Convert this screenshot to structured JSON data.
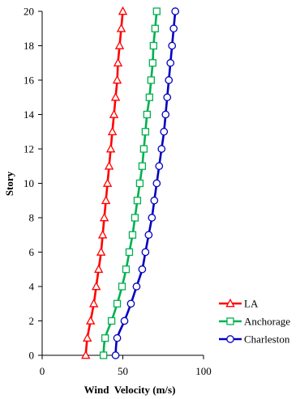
{
  "chart_data": {
    "type": "line",
    "title": "",
    "xlabel": "Wind  Velocity (m/s)",
    "ylabel": "Story",
    "xlim": [
      0,
      100
    ],
    "ylim": [
      0,
      20
    ],
    "x_ticks": [
      "0",
      "50",
      "100"
    ],
    "y_ticks": [
      "0",
      "2",
      "4",
      "6",
      "8",
      "10",
      "12",
      "14",
      "16",
      "18",
      "20"
    ],
    "grid": false,
    "legend_position": "bottom-right",
    "series": [
      {
        "name": "LA",
        "color": "#ff0000",
        "marker": "triangle",
        "points": [
          {
            "x": 27.0,
            "y": 0
          },
          {
            "x": 28.0,
            "y": 1
          },
          {
            "x": 30.0,
            "y": 2
          },
          {
            "x": 32.0,
            "y": 3
          },
          {
            "x": 33.5,
            "y": 4
          },
          {
            "x": 35.0,
            "y": 5
          },
          {
            "x": 36.5,
            "y": 6
          },
          {
            "x": 37.5,
            "y": 7
          },
          {
            "x": 38.5,
            "y": 8
          },
          {
            "x": 39.5,
            "y": 9
          },
          {
            "x": 40.5,
            "y": 10
          },
          {
            "x": 41.5,
            "y": 11
          },
          {
            "x": 42.5,
            "y": 12
          },
          {
            "x": 43.5,
            "y": 13
          },
          {
            "x": 44.5,
            "y": 14
          },
          {
            "x": 45.5,
            "y": 15
          },
          {
            "x": 46.5,
            "y": 16
          },
          {
            "x": 47.0,
            "y": 17
          },
          {
            "x": 48.0,
            "y": 18
          },
          {
            "x": 49.0,
            "y": 19
          },
          {
            "x": 50.0,
            "y": 20
          }
        ]
      },
      {
        "name": "Anchorage",
        "color": "#00b050",
        "marker": "square",
        "points": [
          {
            "x": 38.0,
            "y": 0
          },
          {
            "x": 39.0,
            "y": 1
          },
          {
            "x": 43.0,
            "y": 2
          },
          {
            "x": 46.5,
            "y": 3
          },
          {
            "x": 49.5,
            "y": 4
          },
          {
            "x": 52.0,
            "y": 5
          },
          {
            "x": 54.0,
            "y": 6
          },
          {
            "x": 56.0,
            "y": 7
          },
          {
            "x": 57.5,
            "y": 8
          },
          {
            "x": 59.0,
            "y": 9
          },
          {
            "x": 60.5,
            "y": 10
          },
          {
            "x": 62.0,
            "y": 11
          },
          {
            "x": 63.0,
            "y": 12
          },
          {
            "x": 64.0,
            "y": 13
          },
          {
            "x": 65.0,
            "y": 14
          },
          {
            "x": 66.5,
            "y": 15
          },
          {
            "x": 67.5,
            "y": 16
          },
          {
            "x": 68.5,
            "y": 17
          },
          {
            "x": 69.0,
            "y": 18
          },
          {
            "x": 70.0,
            "y": 19
          },
          {
            "x": 71.0,
            "y": 20
          }
        ]
      },
      {
        "name": "Charleston",
        "color": "#0000c0",
        "marker": "circle",
        "points": [
          {
            "x": 45.5,
            "y": 0
          },
          {
            "x": 46.5,
            "y": 1
          },
          {
            "x": 51.0,
            "y": 2
          },
          {
            "x": 55.0,
            "y": 3
          },
          {
            "x": 58.5,
            "y": 4
          },
          {
            "x": 62.0,
            "y": 5
          },
          {
            "x": 64.0,
            "y": 6
          },
          {
            "x": 66.0,
            "y": 7
          },
          {
            "x": 68.0,
            "y": 8
          },
          {
            "x": 69.5,
            "y": 9
          },
          {
            "x": 71.0,
            "y": 10
          },
          {
            "x": 72.5,
            "y": 11
          },
          {
            "x": 74.0,
            "y": 12
          },
          {
            "x": 75.5,
            "y": 13
          },
          {
            "x": 76.5,
            "y": 14
          },
          {
            "x": 77.5,
            "y": 15
          },
          {
            "x": 78.5,
            "y": 16
          },
          {
            "x": 79.5,
            "y": 17
          },
          {
            "x": 80.5,
            "y": 18
          },
          {
            "x": 81.5,
            "y": 19
          },
          {
            "x": 82.5,
            "y": 20
          }
        ]
      }
    ]
  }
}
